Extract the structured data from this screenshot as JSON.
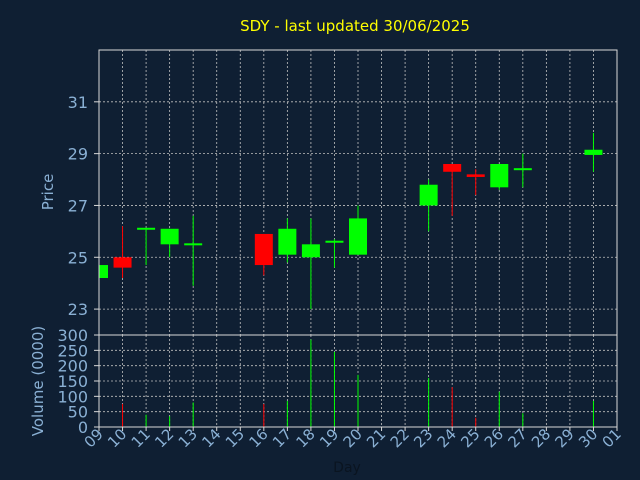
{
  "chart_data": {
    "type": "candlestick",
    "title": "SDY - last updated 30/06/2025",
    "xlabel": "Day",
    "ylabel_price": "Price",
    "ylabel_volume": "Volume (0000)",
    "x_ticks": [
      "09",
      "10",
      "11",
      "12",
      "13",
      "14",
      "15",
      "16",
      "17",
      "18",
      "19",
      "20",
      "21",
      "22",
      "23",
      "24",
      "25",
      "26",
      "27",
      "28",
      "29",
      "30",
      "01"
    ],
    "price_ylim": [
      22,
      33
    ],
    "price_ticks": [
      23,
      25,
      27,
      29,
      31
    ],
    "volume_ylim": [
      0,
      300
    ],
    "volume_ticks": [
      0,
      50,
      100,
      150,
      200,
      250,
      300
    ],
    "grid": true,
    "candles": [
      {
        "day": "09",
        "open": 24.2,
        "high": 24.7,
        "low": 24.2,
        "close": 24.7
      },
      {
        "day": "10",
        "open": 25.0,
        "high": 26.2,
        "low": 24.2,
        "close": 24.6
      },
      {
        "day": "11",
        "open": 26.05,
        "high": 26.1,
        "low": 24.7,
        "close": 26.1
      },
      {
        "day": "12",
        "open": 25.5,
        "high": 26.1,
        "low": 25.0,
        "close": 26.1
      },
      {
        "day": "13",
        "open": 25.45,
        "high": 26.6,
        "low": 23.9,
        "close": 25.5
      },
      {
        "day": "16",
        "open": 25.9,
        "high": 25.9,
        "low": 24.3,
        "close": 24.7
      },
      {
        "day": "17",
        "open": 25.1,
        "high": 26.5,
        "low": 24.8,
        "close": 26.1
      },
      {
        "day": "18",
        "open": 25.0,
        "high": 26.5,
        "low": 23.0,
        "close": 25.5
      },
      {
        "day": "19",
        "open": 25.55,
        "high": 25.7,
        "low": 24.6,
        "close": 25.6
      },
      {
        "day": "20",
        "open": 25.1,
        "high": 27.0,
        "low": 25.1,
        "close": 26.5
      },
      {
        "day": "23",
        "open": 27.0,
        "high": 28.0,
        "low": 26.0,
        "close": 27.8
      },
      {
        "day": "24",
        "open": 28.6,
        "high": 28.6,
        "low": 26.6,
        "close": 28.3
      },
      {
        "day": "25",
        "open": 28.2,
        "high": 28.4,
        "low": 27.4,
        "close": 28.1
      },
      {
        "day": "26",
        "open": 27.7,
        "high": 28.6,
        "low": 27.6,
        "close": 28.6
      },
      {
        "day": "27",
        "open": 28.35,
        "high": 29.0,
        "low": 27.7,
        "close": 28.4
      },
      {
        "day": "30",
        "open": 28.95,
        "high": 29.8,
        "low": 28.3,
        "close": 29.15
      }
    ],
    "volumes": [
      {
        "day": "10",
        "value": 75,
        "up": false
      },
      {
        "day": "11",
        "value": 40,
        "up": true
      },
      {
        "day": "12",
        "value": 35,
        "up": true
      },
      {
        "day": "13",
        "value": 80,
        "up": true
      },
      {
        "day": "16",
        "value": 75,
        "up": false
      },
      {
        "day": "17",
        "value": 85,
        "up": true
      },
      {
        "day": "18",
        "value": 285,
        "up": true
      },
      {
        "day": "19",
        "value": 245,
        "up": true
      },
      {
        "day": "20",
        "value": 170,
        "up": true
      },
      {
        "day": "23",
        "value": 160,
        "up": true
      },
      {
        "day": "24",
        "value": 130,
        "up": false
      },
      {
        "day": "25",
        "value": 30,
        "up": false
      },
      {
        "day": "26",
        "value": 115,
        "up": true
      },
      {
        "day": "27",
        "value": 45,
        "up": true
      },
      {
        "day": "30",
        "value": 85,
        "up": true
      }
    ],
    "colors": {
      "background": "#0f1f33",
      "title": "#ffff00",
      "axis_text": "#8ab0d4",
      "frame": "#d8d8d8",
      "grid": "#c0c0c0",
      "up": "#00ff00",
      "down": "#ff0000"
    }
  }
}
